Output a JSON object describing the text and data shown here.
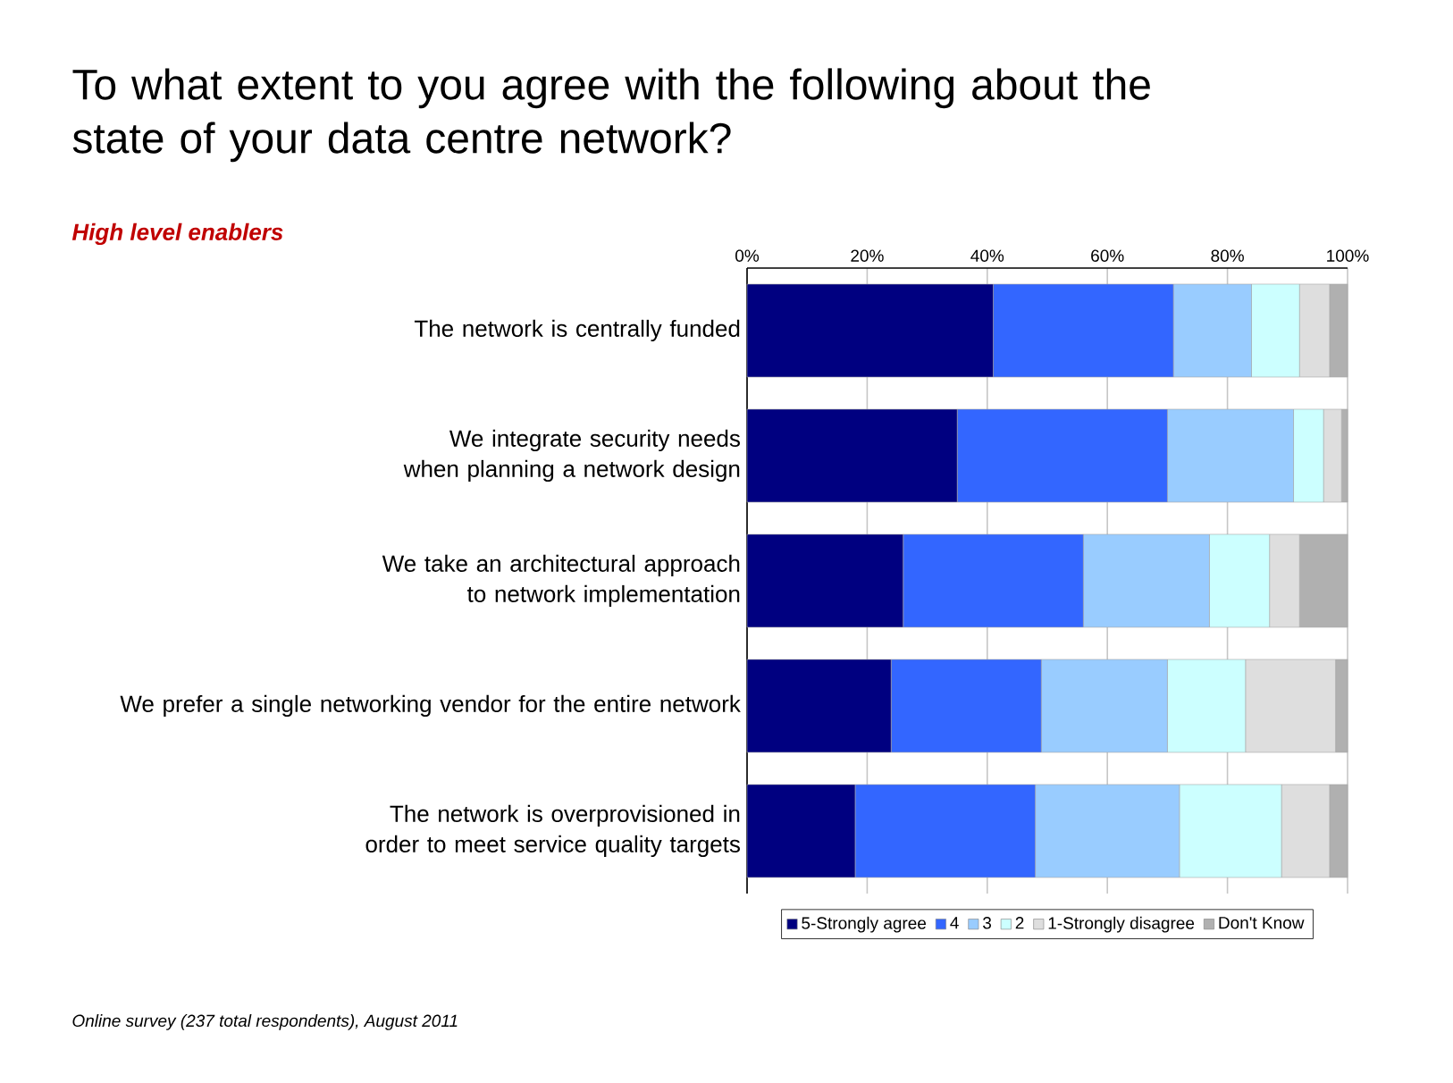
{
  "chart_data": {
    "type": "bar",
    "orientation": "horizontal",
    "stacked": true,
    "title": "To what extent to you agree with the following about the state of your data centre network?",
    "subtitle": "High level enablers",
    "categories": [
      "The network is centrally funded",
      "We integrate security needs when planning a network design",
      "We take an architectural approach to network implementation",
      "We prefer a single networking vendor for the entire network",
      "The network is overprovisioned in order to meet service quality targets"
    ],
    "series": [
      {
        "name": "5-Strongly agree",
        "color": "#000080",
        "values": [
          41,
          35,
          26,
          24,
          18
        ]
      },
      {
        "name": "4",
        "color": "#3366ff",
        "values": [
          30,
          35,
          30,
          25,
          30
        ]
      },
      {
        "name": "3",
        "color": "#99ccff",
        "values": [
          13,
          21,
          21,
          21,
          24
        ]
      },
      {
        "name": "2",
        "color": "#ccffff",
        "values": [
          8,
          5,
          10,
          13,
          17
        ]
      },
      {
        "name": "1-Strongly disagree",
        "color": "#dedede",
        "values": [
          5,
          3,
          5,
          15,
          8
        ]
      },
      {
        "name": "Don't Know",
        "color": "#b0b0b0",
        "values": [
          3,
          1,
          8,
          2,
          3
        ]
      }
    ],
    "xlim": [
      0,
      100
    ],
    "xticks": [
      {
        "value": 0,
        "label": "0%"
      },
      {
        "value": 20,
        "label": "20%"
      },
      {
        "value": 40,
        "label": "40%"
      },
      {
        "value": 60,
        "label": "60%"
      },
      {
        "value": 80,
        "label": "80%"
      },
      {
        "value": 100,
        "label": "100%"
      }
    ],
    "grid": "x",
    "legend": "bottom",
    "annotations": [
      "Online survey (237 total respondents), August 2011"
    ]
  }
}
